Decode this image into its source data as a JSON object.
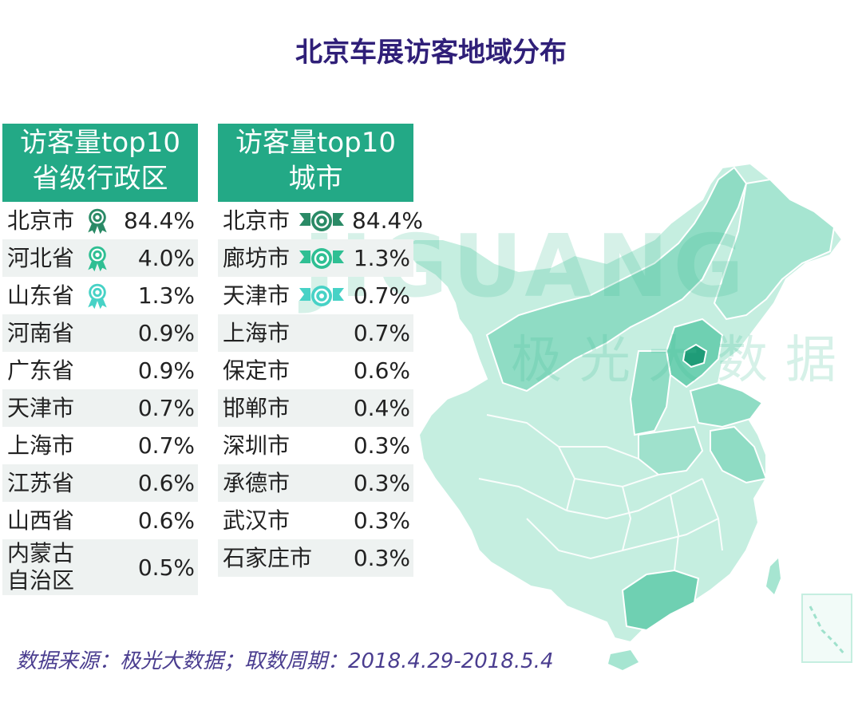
{
  "title": "北京车展访客地域分布",
  "watermark": {
    "latin": "JIGUANG",
    "chinese": "极光大数据"
  },
  "colors": {
    "header_bg": "#23a986",
    "gold": "#2a8a66",
    "silver": "#2fbf93",
    "bronze": "#47d2c6",
    "title": "#2f1f78",
    "map_light": "#c5eee0",
    "map_mid": "#8fdcc4",
    "map_beijing": "#1f9c78"
  },
  "chart_data": [
    {
      "type": "table",
      "title": "访客量top10 省级行政区",
      "header_lines": [
        "访客量top10",
        "省级行政区"
      ],
      "rows": [
        {
          "name": "北京市",
          "value": "84.4%",
          "rank_icon": "gold"
        },
        {
          "name": "河北省",
          "value": "4.0%",
          "rank_icon": "silver"
        },
        {
          "name": "山东省",
          "value": "1.3%",
          "rank_icon": "bronze"
        },
        {
          "name": "河南省",
          "value": "0.9%"
        },
        {
          "name": "广东省",
          "value": "0.9%"
        },
        {
          "name": "天津市",
          "value": "0.7%"
        },
        {
          "name": "上海市",
          "value": "0.7%"
        },
        {
          "name": "江苏省",
          "value": "0.6%"
        },
        {
          "name": "山西省",
          "value": "0.6%"
        },
        {
          "name": "内蒙古 自治区",
          "name_lines": [
            "内蒙古",
            "自治区"
          ],
          "value": "0.5%"
        }
      ]
    },
    {
      "type": "table",
      "title": "访客量top10 城市",
      "header_lines": [
        "访客量top10",
        "城市"
      ],
      "rows": [
        {
          "name": "北京市",
          "value": "84.4%",
          "rank_icon": "gold"
        },
        {
          "name": "廊坊市",
          "value": "1.3%",
          "rank_icon": "silver"
        },
        {
          "name": "天津市",
          "value": "0.7%",
          "rank_icon": "bronze"
        },
        {
          "name": "上海市",
          "value": "0.7%"
        },
        {
          "name": "保定市",
          "value": "0.6%"
        },
        {
          "name": "邯郸市",
          "value": "0.4%"
        },
        {
          "name": "深圳市",
          "value": "0.3%"
        },
        {
          "name": "承德市",
          "value": "0.3%"
        },
        {
          "name": "武汉市",
          "value": "0.3%"
        },
        {
          "name": "石家庄市",
          "value": "0.3%"
        }
      ]
    }
  ],
  "footer": "数据来源：极光大数据；取数周期：2018.4.29-2018.5.4"
}
